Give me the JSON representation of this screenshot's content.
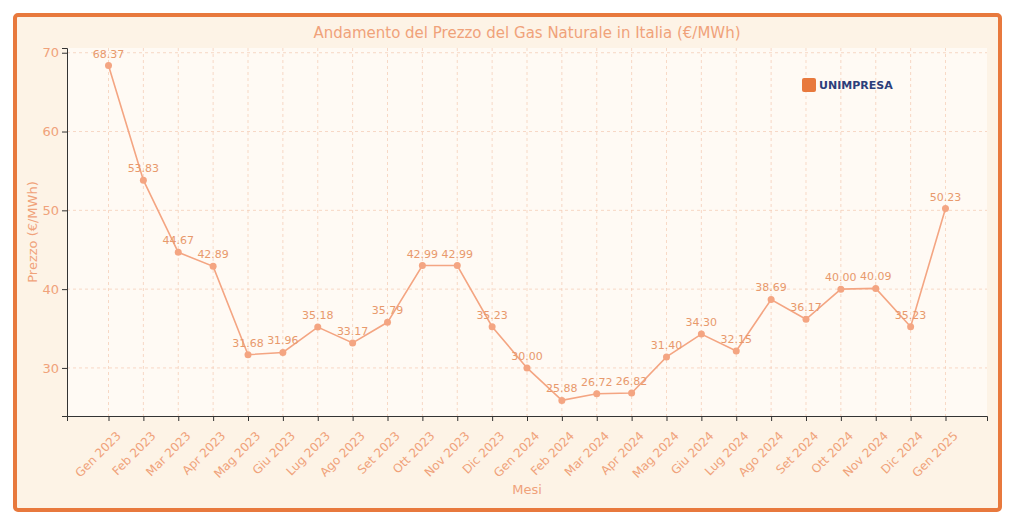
{
  "chart_data": {
    "type": "line",
    "title": "Andamento del Prezzo del Gas Naturale in Italia (€/MWh)",
    "x_label": "Mesi",
    "y_label": "Prezzo (€/MWh)",
    "categories": [
      "Gen 2023",
      "Feb 2023",
      "Mar 2023",
      "Apr 2023",
      "Mag 2023",
      "Giu 2023",
      "Lug 2023",
      "Ago 2023",
      "Set 2023",
      "Ott 2023",
      "Nov 2023",
      "Dic 2023",
      "Gen 2024",
      "Feb 2024",
      "Mar 2024",
      "Apr 2024",
      "Mag 2024",
      "Giu 2024",
      "Lug 2024",
      "Ago 2024",
      "Set 2024",
      "Ott 2024",
      "Nov 2024",
      "Dic 2024",
      "Gen 2025"
    ],
    "values": [
      68.37,
      53.83,
      44.67,
      42.89,
      31.68,
      31.96,
      35.18,
      33.17,
      35.79,
      42.99,
      42.99,
      35.23,
      30.0,
      25.88,
      26.72,
      26.82,
      31.4,
      34.3,
      32.15,
      38.69,
      36.17,
      40.0,
      40.09,
      35.23,
      50.23
    ],
    "value_labels": [
      "68.37",
      "53.83",
      "44.67",
      "42.89",
      "31.68",
      "31.96",
      "35.18",
      "33.17",
      "35.79",
      "42.99",
      "42.99",
      "35.23",
      "30.00",
      "25.88",
      "26.72",
      "26.82",
      "31.40",
      "34.30",
      "32.15",
      "38.69",
      "36.17",
      "40.00",
      "40.09",
      "35.23",
      "50.23"
    ],
    "color": "#f4a582",
    "marker": "circle",
    "line_style": "solid",
    "ylim": [
      23.9,
      70.6
    ],
    "yticks": [
      30,
      40,
      50,
      60,
      70
    ],
    "grid": true,
    "data_labels": true,
    "annotations": [
      "UNIMPRESA"
    ]
  }
}
